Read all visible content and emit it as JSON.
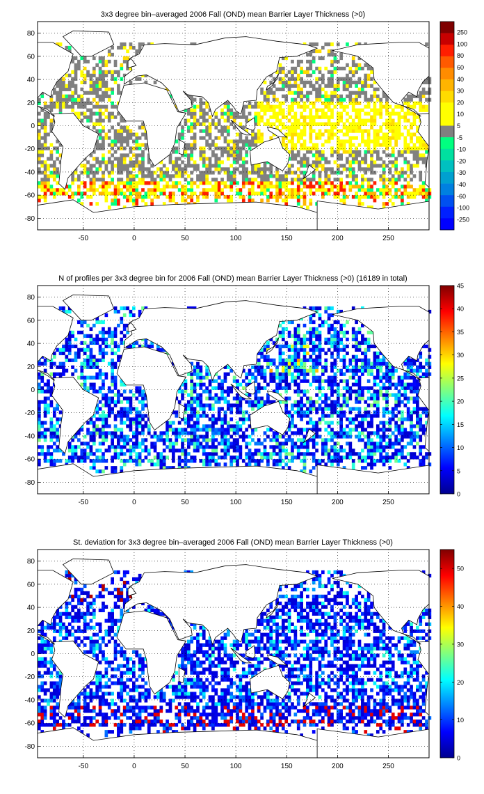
{
  "chart_data": [
    {
      "type": "heatmap",
      "title": "3x3 degree bin–averaged 2006 Fall (OND) mean Barrier Layer Thickness (>0)",
      "x_ticks": [
        "-50",
        "0",
        "50",
        "100",
        "150",
        "200",
        "250"
      ],
      "y_ticks": [
        "80",
        "60",
        "40",
        "20",
        "0",
        "-20",
        "-40",
        "-60",
        "-80"
      ],
      "xlim": [
        -95,
        290
      ],
      "ylim": [
        -90,
        90
      ],
      "grid": true,
      "colorbar": {
        "kind": "discrete",
        "labels": [
          "250",
          "100",
          "80",
          "60",
          "40",
          "30",
          "20",
          "10",
          "5",
          "-5",
          "-10",
          "-20",
          "-30",
          "-40",
          "-60",
          "-100",
          "-250"
        ],
        "colors": [
          "#7f0000",
          "#c80000",
          "#ff1e00",
          "#ff5a00",
          "#ff8c00",
          "#ffb400",
          "#ffdc00",
          "#ffff00",
          "#ffff00",
          "#808080",
          "#00ff80",
          "#00e0a0",
          "#00c0c0",
          "#00a0d0",
          "#0080e0",
          "#0050f0",
          "#0020ff",
          "#0000ff"
        ]
      }
    },
    {
      "type": "heatmap",
      "title": "N of profiles per 3x3 degree bin for 2006 Fall (OND) mean Barrier Layer Thickness (>0) (16189 in total)",
      "x_ticks": [
        "-50",
        "0",
        "50",
        "100",
        "150",
        "200",
        "250"
      ],
      "y_ticks": [
        "80",
        "60",
        "40",
        "20",
        "0",
        "-20",
        "-40",
        "-60",
        "-80"
      ],
      "xlim": [
        -95,
        290
      ],
      "ylim": [
        -90,
        90
      ],
      "grid": true,
      "colorbar": {
        "kind": "continuous",
        "range": [
          0,
          45
        ],
        "labels": [
          "45",
          "40",
          "35",
          "30",
          "25",
          "20",
          "15",
          "10",
          "5",
          "0"
        ]
      }
    },
    {
      "type": "heatmap",
      "title": "St. deviation for 3x3 degree bin–averaged 2006 Fall (OND) mean Barrier Layer Thickness (>0)",
      "x_ticks": [
        "-50",
        "0",
        "50",
        "100",
        "150",
        "200",
        "250"
      ],
      "y_ticks": [
        "80",
        "60",
        "40",
        "20",
        "0",
        "-20",
        "-40",
        "-60",
        "-80"
      ],
      "xlim": [
        -95,
        290
      ],
      "ylim": [
        -90,
        90
      ],
      "grid": true,
      "colorbar": {
        "kind": "continuous",
        "range": [
          0,
          55
        ],
        "labels": [
          "50",
          "40",
          "30",
          "20",
          "10",
          "0"
        ]
      }
    }
  ]
}
